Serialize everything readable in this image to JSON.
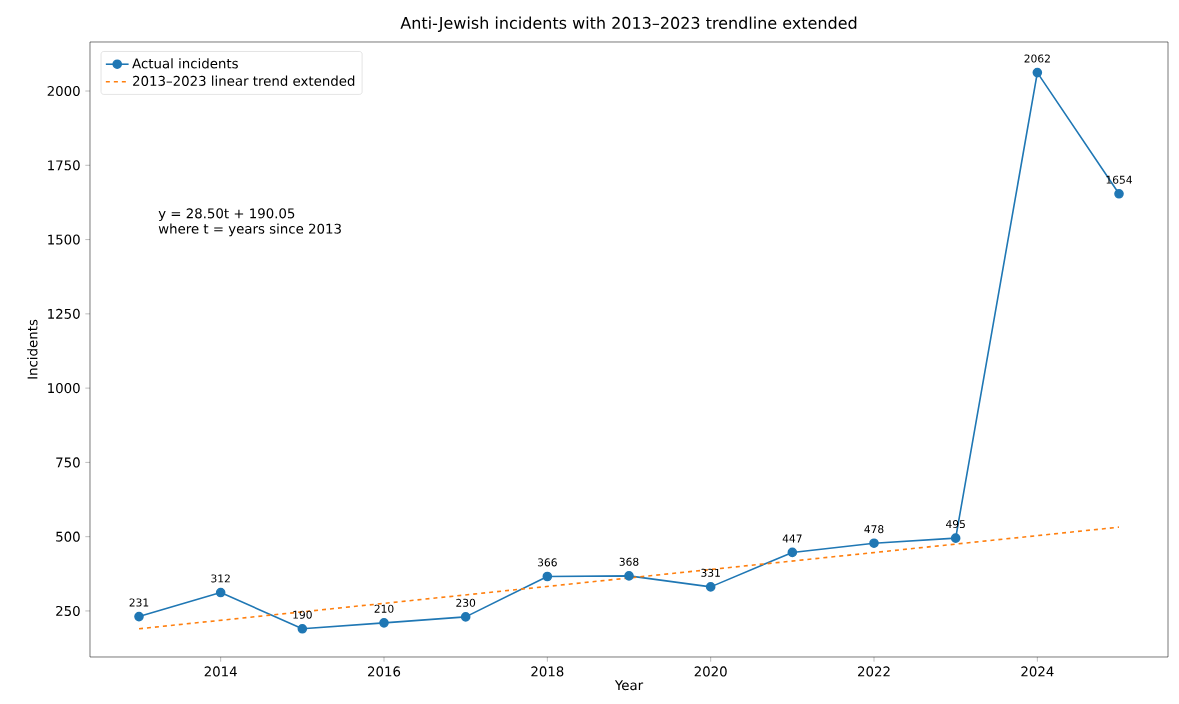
{
  "chart_data": {
    "type": "line",
    "title": "Anti-Jewish incidents with 2013–2023 trendline extended",
    "xlabel": "Year",
    "ylabel": "Incidents",
    "x": [
      2013,
      2014,
      2015,
      2016,
      2017,
      2018,
      2019,
      2020,
      2021,
      2022,
      2023,
      2024,
      2025
    ],
    "series": [
      {
        "name": "Actual incidents",
        "color": "#1f77b4",
        "marker": "circle",
        "line_style": "solid",
        "values": [
          231,
          312,
          190,
          210,
          230,
          366,
          368,
          331,
          447,
          478,
          495,
          2062,
          1654
        ],
        "value_labels": [
          "231",
          "312",
          "190",
          "210",
          "230",
          "366",
          "368",
          "331",
          "447",
          "478",
          "495",
          "2062",
          "1654"
        ]
      },
      {
        "name": "2013–2023 linear trend extended",
        "color": "#ff7f0e",
        "marker": "none",
        "line_style": "dashed",
        "x": [
          2013,
          2025
        ],
        "values": [
          190.05,
          532.05
        ]
      }
    ],
    "xlim": [
      2012.4,
      2025.6
    ],
    "ylim": [
      95,
      2165
    ],
    "xticks": [
      2014,
      2016,
      2018,
      2020,
      2022,
      2024
    ],
    "yticks": [
      250,
      500,
      750,
      1000,
      1250,
      1500,
      1750,
      2000
    ],
    "annotations": [
      "y = 28.50t + 190.05",
      "where t = years since 2013"
    ],
    "legend": "top left",
    "grid": false
  }
}
